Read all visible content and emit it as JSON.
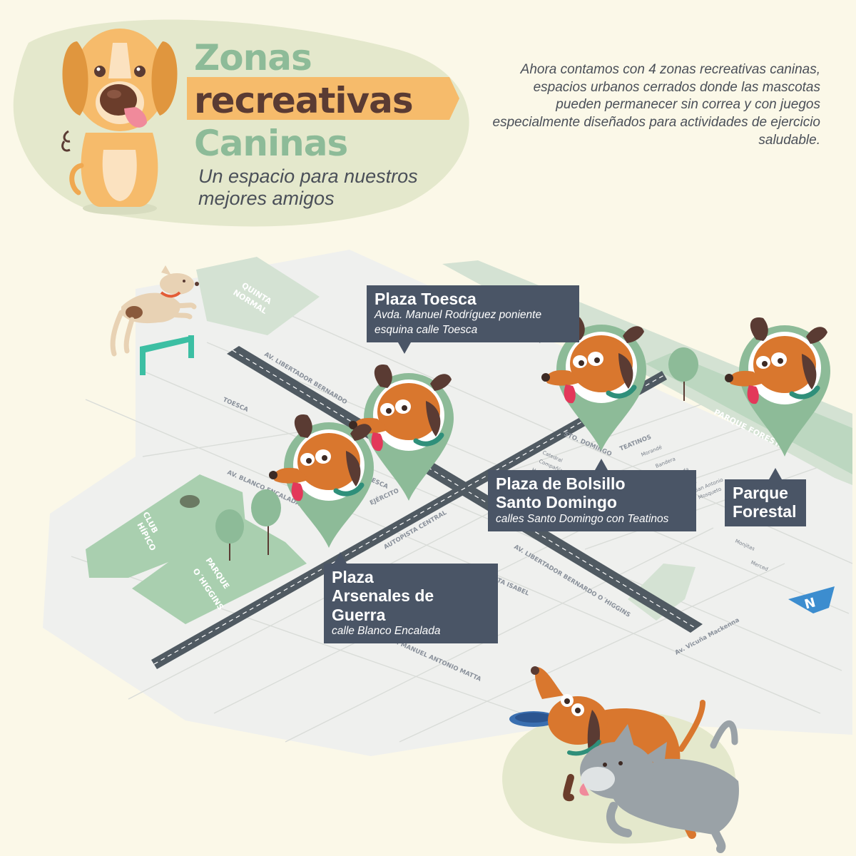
{
  "header": {
    "title_line1": "Zonas",
    "title_line2": "recreativas",
    "title_line3": "Caninas",
    "subtitle": "Un espacio para nuestros mejores amigos"
  },
  "intro": "Ahora contamos con 4 zonas recreativas caninas, espacios urbanos cerrados donde las mascotas pueden permanecer sin correa y con juegos especialmente diseñados para actividades de ejercicio saludable.",
  "locations": [
    {
      "name": "Plaza Toesca",
      "address": "Avda. Manuel Rodríguez poniente\nesquina calle Toesca"
    },
    {
      "name": "Plaza de Bolsillo\nSanto Domingo",
      "address": "calles Santo Domingo con Teatinos"
    },
    {
      "name": "Parque\nForestal",
      "address": ""
    },
    {
      "name": "Plaza\nArsenales de Guerra",
      "address": "calle Blanco Encalada"
    }
  ],
  "map": {
    "parks": {
      "quinta_normal": [
        "QUINTA",
        "NORMAL"
      ],
      "club_hipico": [
        "CLUB",
        "HÍPICO"
      ],
      "parque_ohiggins": [
        "PARQUE",
        "O´HIGGINS"
      ],
      "parque_forestal": "PARQUE FORESTAL"
    },
    "streets": {
      "libertador_top": "AV. LIBERTADOR BERNARDO",
      "libertador_bottom": "AV. LIBERTADOR BERNARDO O´HIGGINS",
      "autopista": "AUTOPISTA CENTRAL",
      "toesca": "TOESCA",
      "blanco_encalada": "AV. BLANCO ENCALADA",
      "ejercito": "EJÉRCITO",
      "santa_isabel": "AV. SANTA ISABEL",
      "matta": "AV. MANUEL ANTONIO MATTA",
      "santo_domingo": "STO. DOMINGO",
      "teatinos": "TEATINOS",
      "vicuna_mackenna": "Av. Vicuña Mackenna",
      "moneda_fragment": "ceda",
      "esca_fragment": "ESCA",
      "small": [
        "Catedral",
        "Compañía",
        "Huérfanos",
        "Agus",
        "Morandé",
        "Bandera",
        "Ahumada",
        "Estado",
        "San Antonio",
        "Mosqueto",
        "Monjitas",
        "Merced"
      ]
    },
    "north_label": "N"
  },
  "colors": {
    "background": "#fbf8e8",
    "title_green": "#8dbb98",
    "title_brown": "#5a3b33",
    "title_band": "#f6bb6b",
    "callout": "#4a5566",
    "pin": "#8dbb98",
    "dog_orange": "#d9772e",
    "street_bg": "#eff0ee",
    "road": "#505a62",
    "north_blue": "#3c8dcf"
  },
  "icons": [
    "dog-icon",
    "map-pin-icon",
    "tree-icon",
    "north-arrow-icon",
    "frisbee-icon",
    "cat-icon"
  ]
}
